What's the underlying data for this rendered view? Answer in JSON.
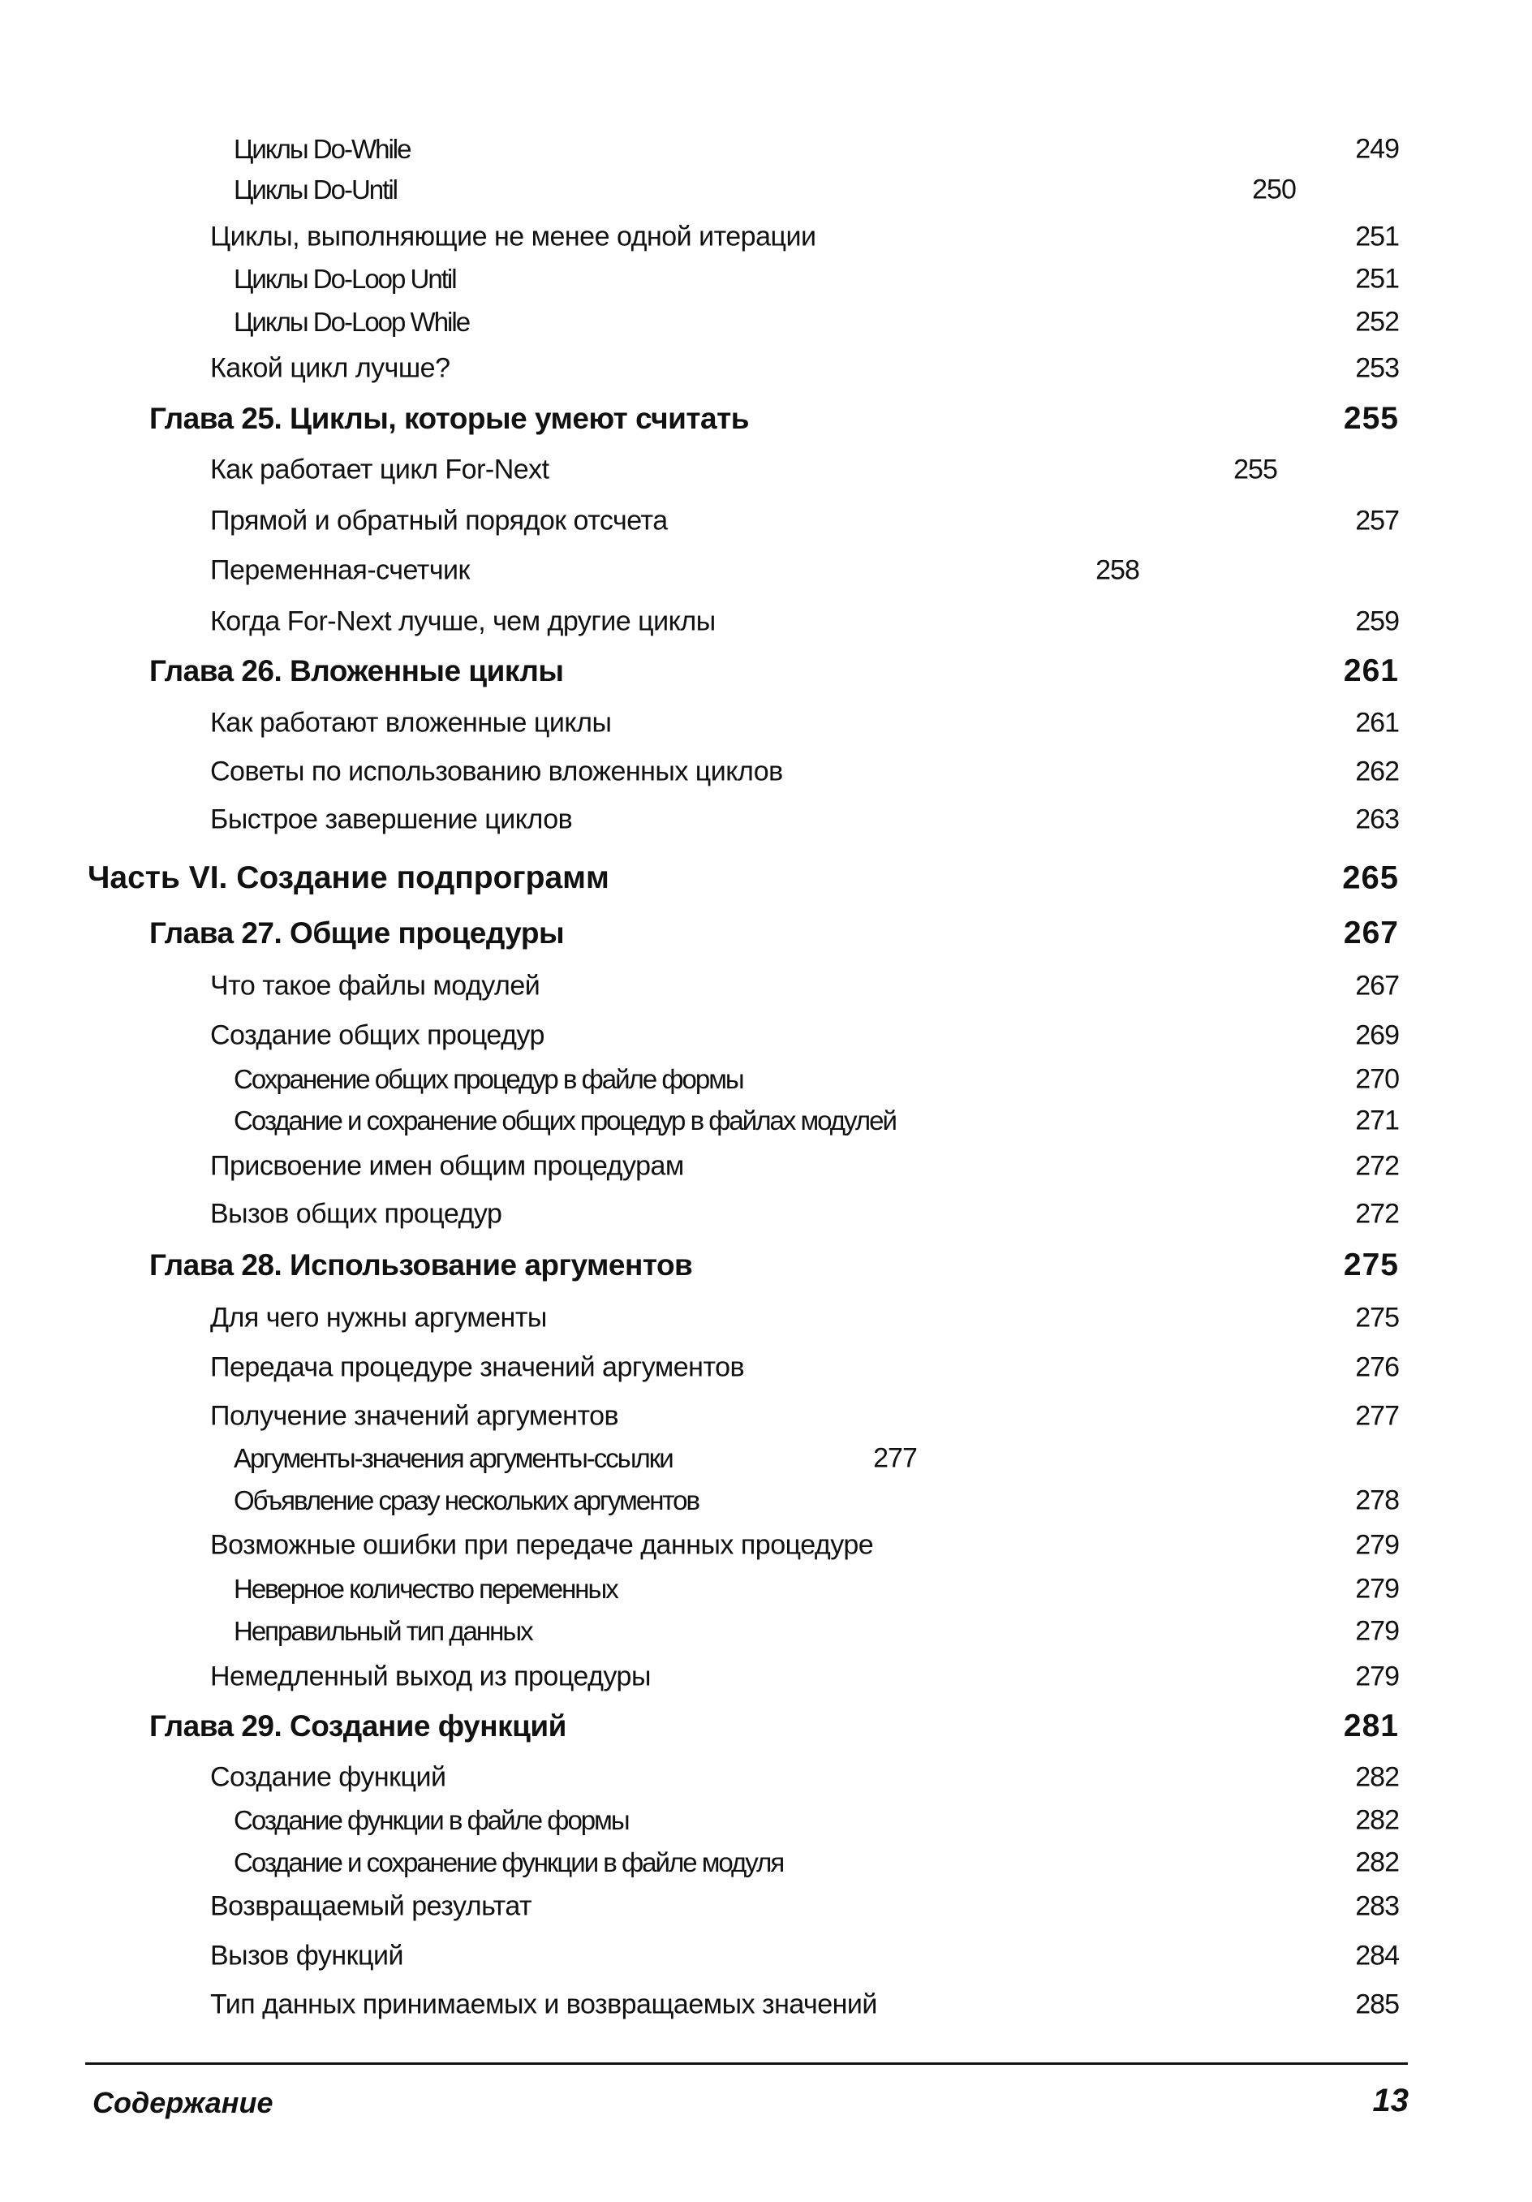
{
  "entries": [
    {
      "text": "Циклы Do-While",
      "page": "249"
    },
    {
      "text": "Циклы Do-Until",
      "page": "250"
    },
    {
      "text": "Циклы, выполняющие не менее одной итерации",
      "page": "251"
    },
    {
      "text": "Циклы Do-Loop Until",
      "page": "251"
    },
    {
      "text": "Циклы Do-Loop While",
      "page": "252"
    },
    {
      "text": "Какой цикл лучше?",
      "page": "253"
    },
    {
      "text": "Глава 25. Циклы, которые умеют считать",
      "page": "255"
    },
    {
      "text": "Как работает цикл For-Next",
      "page": "255"
    },
    {
      "text": "Прямой и обратный порядок отсчета",
      "page": "257"
    },
    {
      "text": "Переменная-счетчик",
      "page": "258"
    },
    {
      "text": "Когда For-Next лучше, чем другие циклы",
      "page": "259"
    },
    {
      "text": "Глава 26. Вложенные циклы",
      "page": "261"
    },
    {
      "text": "Как работают вложенные циклы",
      "page": "261"
    },
    {
      "text": "Советы по использованию вложенных циклов",
      "page": "262"
    },
    {
      "text": "Быстрое завершение циклов",
      "page": "263"
    },
    {
      "text": "Часть VI. Создание подпрограмм",
      "page": "265"
    },
    {
      "text": "Глава 27. Общие процедуры",
      "page": "267"
    },
    {
      "text": "Что такое файлы модулей",
      "page": "267"
    },
    {
      "text": "Создание общих процедур",
      "page": "269"
    },
    {
      "text": "Сохранение общих процедур в файле формы",
      "page": "270"
    },
    {
      "text": "Создание и сохранение общих процедур в файлах модулей",
      "page": "271"
    },
    {
      "text": "Присвоение имен общим процедурам",
      "page": "272"
    },
    {
      "text": "Вызов общих процедур",
      "page": "272"
    },
    {
      "text": "Глава 28. Использование аргументов",
      "page": "275"
    },
    {
      "text": "Для чего нужны аргументы",
      "page": "275"
    },
    {
      "text": "Передача процедуре значений аргументов",
      "page": "276"
    },
    {
      "text": "Получение значений аргументов",
      "page": "277"
    },
    {
      "text": "Аргументы-значения   аргументы-ссылки",
      "page": "277"
    },
    {
      "text": "Объявление сразу нескольких аргументов",
      "page": "278"
    },
    {
      "text": "Возможные ошибки при передаче данных процедуре",
      "page": "279"
    },
    {
      "text": "Неверное количество переменных",
      "page": "279"
    },
    {
      "text": "Неправильный тип данных",
      "page": "279"
    },
    {
      "text": "Немедленный выход из процедуры",
      "page": "279"
    },
    {
      "text": "Глава 29. Создание функций",
      "page": "281"
    },
    {
      "text": "Создание функций",
      "page": "282"
    },
    {
      "text": "Создание функции в файле формы",
      "page": "282"
    },
    {
      "text": "Создание и сохранение функции в файле модуля",
      "page": "282"
    },
    {
      "text": "Возвращаемый результат",
      "page": "283"
    },
    {
      "text": "Вызов функций",
      "page": "284"
    },
    {
      "text": "Тип данных принимаемых и возвращаемых значений",
      "page": "285"
    }
  ],
  "footer": {
    "section": "Содержание",
    "page_number": "13"
  }
}
